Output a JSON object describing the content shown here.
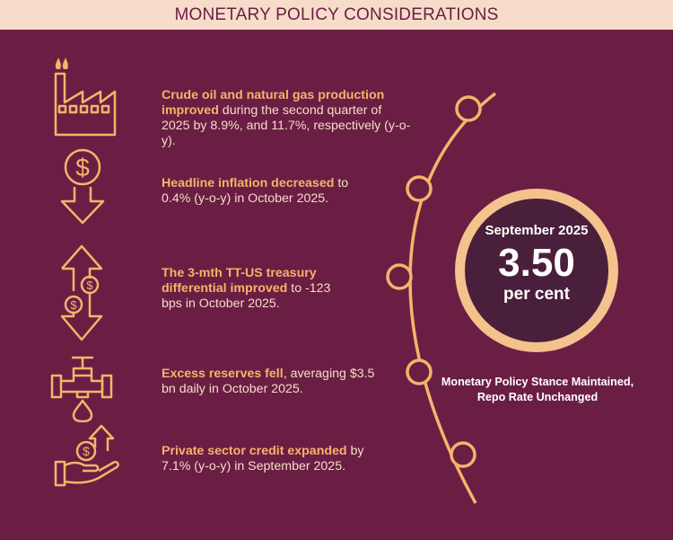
{
  "header": {
    "title": "MONETARY POLICY CONSIDERATIONS"
  },
  "items": [
    {
      "icon": "factory-icon",
      "highlight": "Crude oil and natural gas production improved",
      "text": " during the second quarter of 2025 by 8.9%, and 11.7%, respectively (y-o-y)."
    },
    {
      "icon": "dollar-down-arrow-icon",
      "highlight": "Headline inflation decreased",
      "text": " to 0.4% (y-o-y) in October 2025."
    },
    {
      "icon": "dollar-up-down-arrows-icon",
      "highlight": "The 3-mth TT-US treasury differential improved",
      "text": " to -123 bps in October 2025."
    },
    {
      "icon": "faucet-drop-icon",
      "highlight": "Excess reserves fell",
      "text": ", averaging $3.5 bn daily in October 2025."
    },
    {
      "icon": "hand-dollar-up-arrow-icon",
      "highlight": "Private sector credit expanded",
      "text": " by 7.1% (y-o-y) in September 2025."
    }
  ],
  "rate_circle": {
    "month": "September 2025",
    "rate": "3.50",
    "unit": "per cent"
  },
  "stance": {
    "line1": "Monetary Policy Stance Maintained,",
    "line2": "Repo Rate Unchanged"
  },
  "colors": {
    "background": "#6b1e44",
    "header_band": "#f6dcc9",
    "accent": "#f7b36a",
    "circle_fill": "#4a1f3b",
    "body_text": "#f6dcc9"
  }
}
